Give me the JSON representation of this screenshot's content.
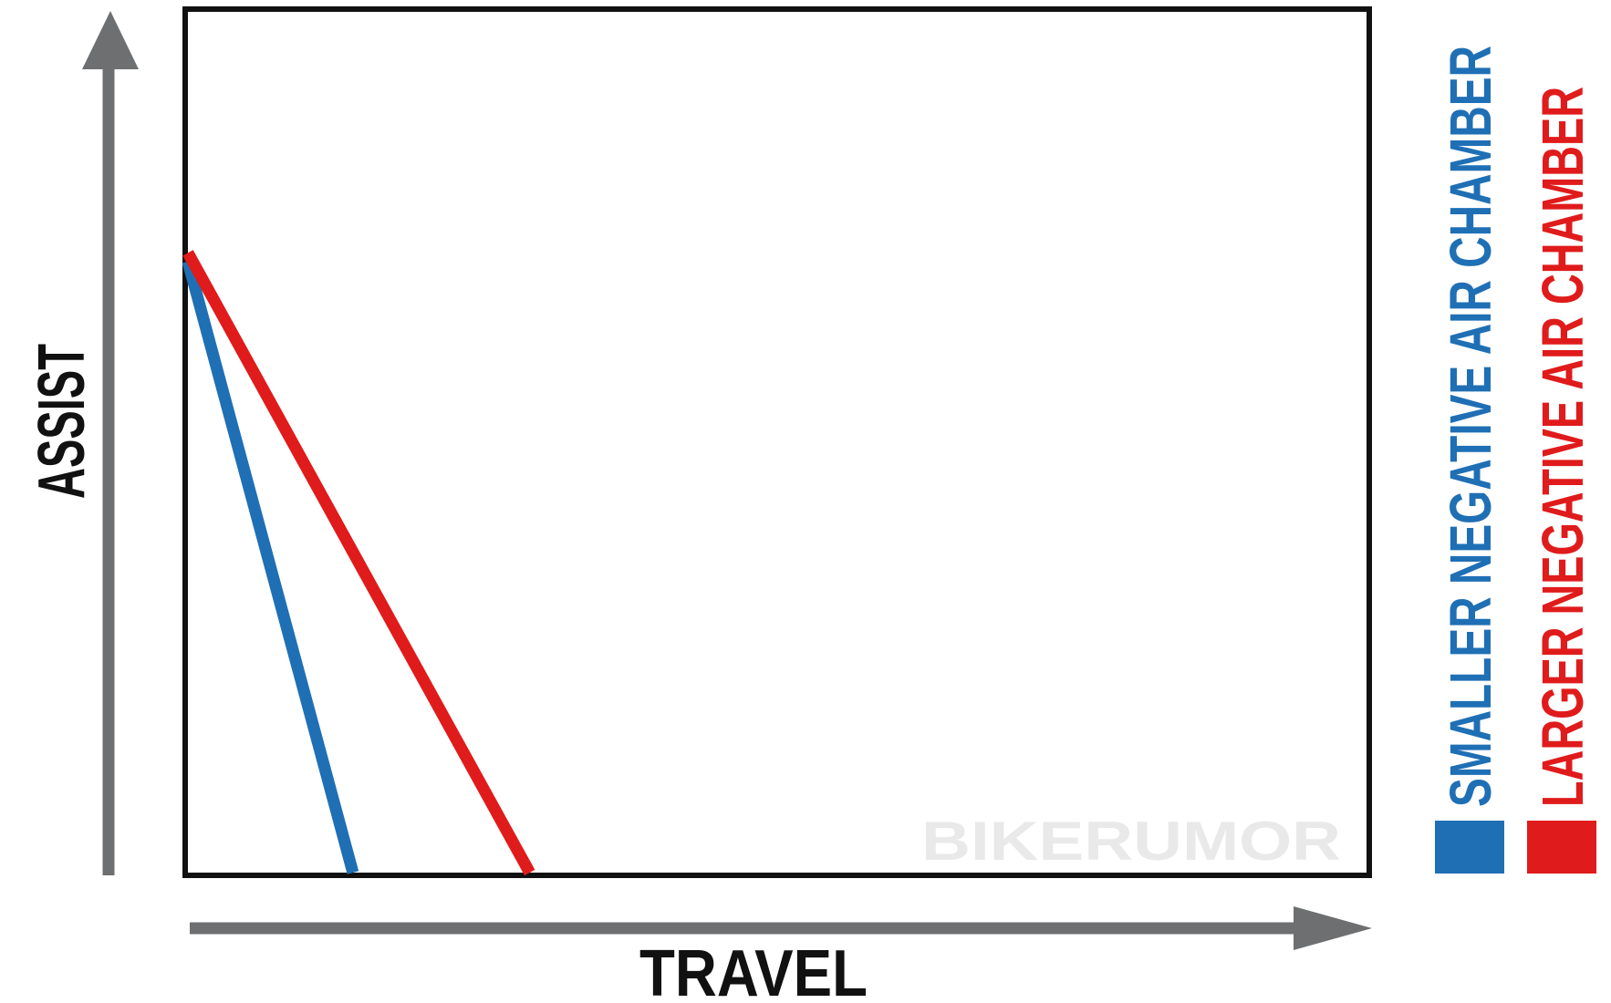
{
  "chart_data": {
    "type": "line",
    "title": "",
    "xlabel": "TRAVEL",
    "ylabel": "ASSIST",
    "xlim": [
      0,
      1
    ],
    "ylim": [
      0,
      1
    ],
    "grid": false,
    "legend_position": "right",
    "series": [
      {
        "name": "SMALLER NEGATIVE AIR CHAMBER",
        "color": "#1f6fb5",
        "x": [
          0,
          0.14
        ],
        "y": [
          0.71,
          0
        ]
      },
      {
        "name": "LARGER NEGATIVE AIR CHAMBER",
        "color": "#e01b1b",
        "x": [
          0,
          0.29
        ],
        "y": [
          0.72,
          0
        ]
      }
    ],
    "watermark": "BIKERUMOR",
    "colors": {
      "axis_arrow": "#6d6f71",
      "frame": "#111111",
      "watermark": "#e9e9e9"
    }
  }
}
